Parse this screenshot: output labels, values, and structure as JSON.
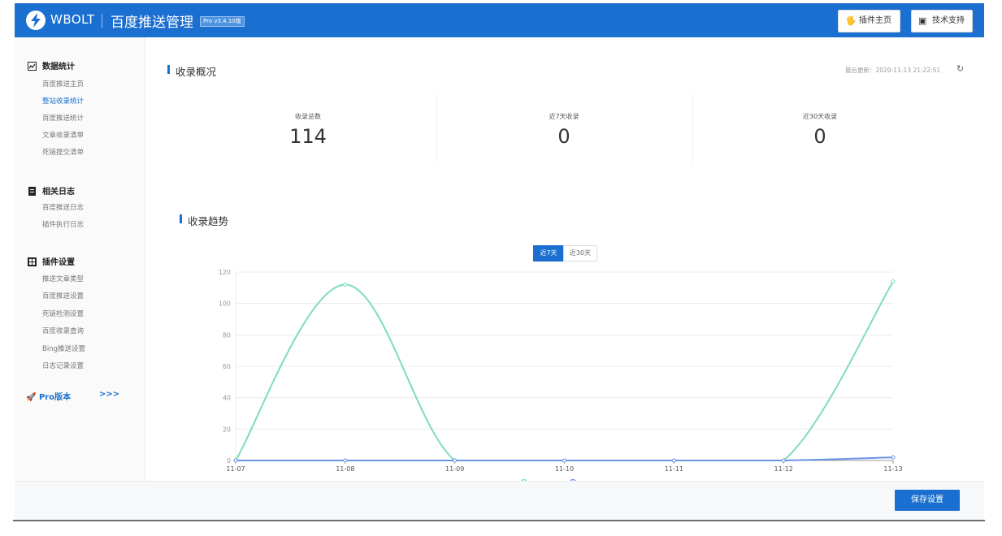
{
  "header": {
    "brand": "WBOLT",
    "title": "百度推送管理",
    "version_badge": "Pro v3.4.10版",
    "plugin_home_label": "插件主页",
    "support_label": "技术支持",
    "bg_color": "#1a6fd0"
  },
  "sidebar": {
    "groups": [
      {
        "label": "数据统计",
        "icon": "chart-icon",
        "items": [
          "百度推送主页",
          "整站收录统计",
          "百度推送统计",
          "文章收录清单",
          "死链提交清单"
        ]
      },
      {
        "label": "相关日志",
        "icon": "log-icon",
        "items": [
          "百度推送日志",
          "插件执行日志"
        ]
      },
      {
        "label": "插件设置",
        "icon": "settings-icon",
        "items": [
          "推送文章类型",
          "百度推送设置",
          "死链检测设置",
          "百度收录查询",
          "Bing推送设置",
          "日志记录设置"
        ]
      }
    ],
    "active_item": "整站收录统计",
    "pro_label": "Pro版本",
    "pro_arrow": ">>>"
  },
  "overview": {
    "title": "收录概况",
    "updated_label": "最后更新：2020-11-13 21:22:51",
    "stats": [
      {
        "label": "收录总数",
        "value": "114"
      },
      {
        "label": "近7天收录",
        "value": "0"
      },
      {
        "label": "近30天收录",
        "value": "0"
      }
    ]
  },
  "trend": {
    "title": "收录趋势",
    "range_tabs": [
      "近7天",
      "近30天"
    ],
    "active_range": "近7天"
  },
  "chart_data": {
    "type": "line",
    "x": [
      "11-07",
      "11-08",
      "11-09",
      "11-10",
      "11-11",
      "11-12",
      "11-13"
    ],
    "ylim": [
      0,
      120
    ],
    "yticks": [
      0,
      20,
      40,
      60,
      80,
      100,
      120
    ],
    "series": [
      {
        "values": [
          0,
          112,
          0,
          0,
          0,
          0,
          114
        ],
        "color": "#7fdcb8"
      },
      {
        "values": [
          0,
          0,
          0,
          0,
          0,
          0,
          2
        ],
        "color": "#6a94e6"
      }
    ],
    "grid": true,
    "legend_position": "bottom"
  },
  "footer": {
    "save_label": "保存设置"
  }
}
